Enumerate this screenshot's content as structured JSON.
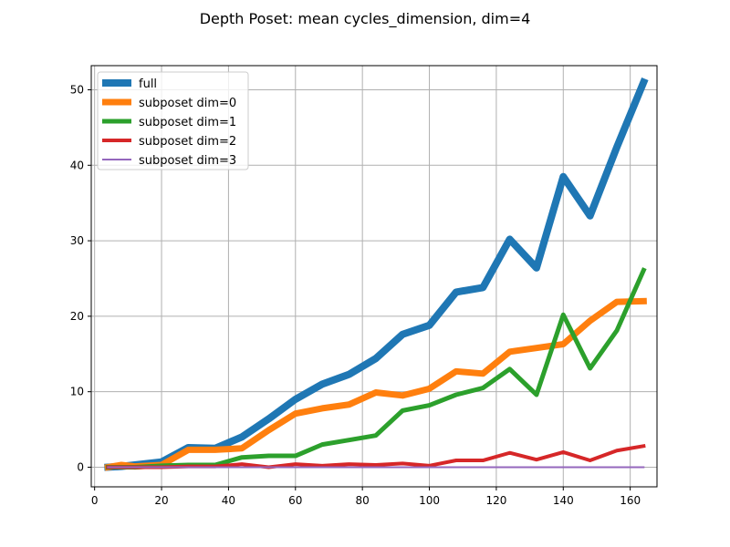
{
  "chart_data": {
    "type": "line",
    "title": "Depth Poset: mean cycles_dimension, dim=4",
    "xlabel": "",
    "ylabel": "",
    "xlim": [
      -1,
      168
    ],
    "ylim": [
      -2.6,
      53.2
    ],
    "xticks": [
      0,
      20,
      40,
      60,
      80,
      100,
      120,
      140,
      160
    ],
    "yticks": [
      0,
      10,
      20,
      30,
      40,
      50
    ],
    "grid": true,
    "legend_position": "top-left",
    "x": [
      4,
      8,
      12,
      20,
      28,
      36,
      44,
      52,
      60,
      68,
      76,
      84,
      92,
      100,
      108,
      116,
      124,
      132,
      140,
      148,
      156,
      164
    ],
    "series": [
      {
        "name": "full",
        "color": "#1f77b4",
        "values": [
          0.0,
          0.1,
          0.3,
          0.7,
          2.6,
          2.5,
          4.0,
          6.4,
          9.0,
          11.0,
          12.3,
          14.4,
          17.6,
          18.8,
          23.2,
          23.8,
          30.2,
          26.4,
          38.5,
          33.3,
          42.4,
          51.0
        ]
      },
      {
        "name": "subposet dim=0",
        "color": "#ff7f0e",
        "values": [
          0.0,
          0.3,
          0.1,
          0.3,
          2.3,
          2.3,
          2.5,
          4.9,
          7.1,
          7.8,
          8.3,
          9.9,
          9.5,
          10.4,
          12.7,
          12.4,
          15.3,
          15.8,
          16.3,
          19.4,
          21.9,
          22.0
        ]
      },
      {
        "name": "subposet dim=1",
        "color": "#2ca02c",
        "values": [
          0.0,
          0.0,
          0.0,
          0.2,
          0.3,
          0.3,
          1.3,
          1.5,
          1.5,
          3.0,
          3.6,
          4.2,
          7.5,
          8.2,
          9.6,
          10.5,
          13.0,
          9.6,
          20.2,
          13.1,
          18.1,
          26.1
        ]
      },
      {
        "name": "subposet dim=2",
        "color": "#d62728",
        "values": [
          0.0,
          0.0,
          0.0,
          0.0,
          0.1,
          0.1,
          0.4,
          0.0,
          0.4,
          0.2,
          0.4,
          0.3,
          0.5,
          0.2,
          0.9,
          0.9,
          1.9,
          1.0,
          2.0,
          0.9,
          2.2,
          2.8
        ]
      },
      {
        "name": "subposet dim=3",
        "color": "#9467bd",
        "values": [
          0.0,
          0.0,
          0.0,
          0.0,
          0.0,
          0.0,
          0.0,
          0.0,
          0.0,
          0.0,
          0.0,
          0.0,
          0.0,
          0.0,
          0.0,
          0.0,
          0.0,
          0.0,
          0.0,
          0.0,
          0.0,
          0.0
        ]
      }
    ]
  }
}
